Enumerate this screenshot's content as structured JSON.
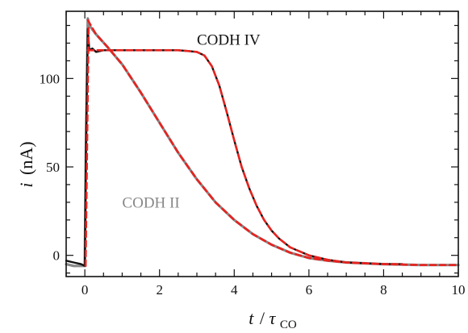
{
  "chart_data": {
    "type": "line",
    "xlabel_main": "t",
    "xlabel_sep": "/",
    "xlabel_tau": "τ",
    "xlabel_sub": "CO",
    "ylabel_main": "i",
    "ylabel_unit": "(nA)",
    "xlim": [
      -0.5,
      10
    ],
    "ylim": [
      -12,
      138
    ],
    "x_ticks": [
      0,
      2,
      4,
      6,
      8,
      10
    ],
    "y_ticks": [
      0,
      50,
      100
    ],
    "grid": false,
    "colors": {
      "codh_iv": "#111111",
      "codh_ii": "#888888",
      "fit": "#e8231f"
    },
    "annotations": [
      {
        "text": "CODH IV",
        "color": "#111111",
        "x": 3.0,
        "y": 119
      },
      {
        "text": "CODH II",
        "color": "#888888",
        "x": 1.0,
        "y": 27
      }
    ],
    "series": [
      {
        "key": "codh_iv",
        "x": [
          -0.5,
          -0.3,
          -0.1,
          0.0,
          0.03,
          0.08,
          0.12,
          0.2,
          0.3,
          0.5,
          1,
          1.5,
          2,
          2.5,
          2.8,
          3,
          3.2,
          3.4,
          3.6,
          3.8,
          4,
          4.2,
          4.4,
          4.6,
          4.8,
          5,
          5.2,
          5.5,
          6,
          6.5,
          7,
          7.5,
          8,
          8.5
        ],
        "y": [
          -3,
          -4,
          -5,
          -6,
          60,
          128,
          116,
          117,
          115,
          116,
          116,
          116,
          116,
          116,
          115.5,
          115,
          113,
          107,
          96,
          81,
          65,
          50,
          38,
          28,
          20,
          14,
          9.5,
          4.5,
          0,
          -2.5,
          -4,
          -4.5,
          -5,
          -5
        ]
      },
      {
        "key": "codh_ii",
        "x": [
          -0.5,
          -0.3,
          -0.1,
          0.0,
          0.03,
          0.08,
          0.12,
          0.3,
          0.6,
          1,
          1.5,
          2,
          2.5,
          3,
          3.5,
          4,
          4.5,
          5,
          5.5,
          6,
          6.5,
          7,
          8,
          9,
          10
        ],
        "y": [
          -5,
          -6,
          -6,
          -6,
          60,
          134,
          130,
          125,
          118,
          108,
          92,
          75,
          58,
          43,
          30,
          20,
          12,
          6,
          1.5,
          -1.5,
          -3,
          -4,
          -5,
          -5.5,
          -5.5
        ]
      },
      {
        "key": "codh_iv_fit",
        "x": [
          0.08,
          0.2,
          0.5,
          1,
          1.5,
          2,
          2.5,
          2.8,
          3,
          3.2,
          3.4,
          3.6,
          3.8,
          4,
          4.2,
          4.4,
          4.6,
          4.8,
          5,
          5.2,
          5.5,
          6,
          6.5,
          7,
          7.5,
          8,
          8.5
        ],
        "y": [
          116,
          116,
          116,
          116,
          116,
          116,
          116,
          115.5,
          115,
          113,
          107,
          96,
          81,
          65,
          50,
          38,
          28,
          20,
          14,
          9.5,
          4.5,
          0,
          -2.5,
          -4,
          -4.5,
          -5,
          -5
        ]
      },
      {
        "key": "codh_ii_fit",
        "x": [
          0.08,
          0.3,
          0.6,
          1,
          1.5,
          2,
          2.5,
          3,
          3.5,
          4,
          4.5,
          5,
          5.5,
          6,
          6.5,
          7,
          8,
          9,
          10
        ],
        "y": [
          133,
          125,
          118,
          108,
          92,
          75,
          58,
          43,
          30,
          20,
          12,
          6,
          1.5,
          -1.5,
          -3,
          -4,
          -5,
          -5.5,
          -5.5
        ]
      },
      {
        "key": "rise_fit",
        "x": [
          0.02,
          0.1
        ],
        "y": [
          -6,
          130
        ]
      }
    ]
  }
}
